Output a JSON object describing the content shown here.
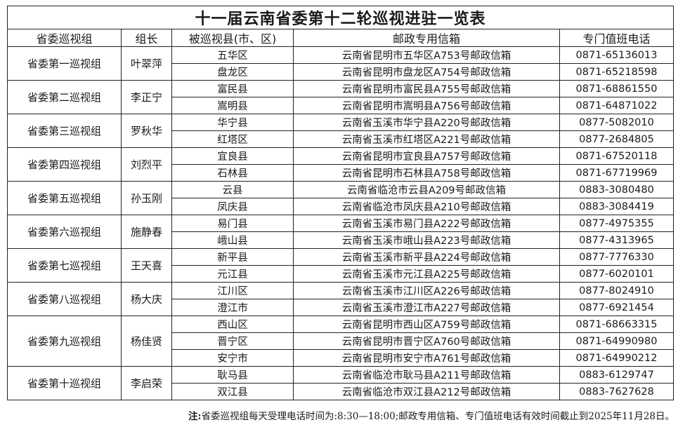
{
  "title": "十一届云南省委第十二轮巡视进驻一览表",
  "headers": [
    "省委巡视组",
    "组长",
    "被巡视县(市、区)",
    "邮政专用信箱",
    "专门值班电话"
  ],
  "groups": [
    {
      "name": "省委第一巡视组",
      "leader": "叶翠萍",
      "rows": [
        {
          "county": "五华区",
          "mailbox": "云南省昆明市五华区A753号邮政信箱",
          "phone": "0871-65136013"
        },
        {
          "county": "盘龙区",
          "mailbox": "云南省昆明市盘龙区A754号邮政信箱",
          "phone": "0871-65218598"
        }
      ]
    },
    {
      "name": "省委第二巡视组",
      "leader": "李正宁",
      "rows": [
        {
          "county": "富民县",
          "mailbox": "云南省昆明市富民县A755号邮政信箱",
          "phone": "0871-68861550"
        },
        {
          "county": "嵩明县",
          "mailbox": "云南省昆明市嵩明县A756号邮政信箱",
          "phone": "0871-64871022"
        }
      ]
    },
    {
      "name": "省委第三巡视组",
      "leader": "罗秋华",
      "rows": [
        {
          "county": "华宁县",
          "mailbox": "云南省玉溪市华宁县A220号邮政信箱",
          "phone": "0877-5082010"
        },
        {
          "county": "红塔区",
          "mailbox": "云南省玉溪市红塔区A221号邮政信箱",
          "phone": "0877-2684805"
        }
      ]
    },
    {
      "name": "省委第四巡视组",
      "leader": "刘烈平",
      "rows": [
        {
          "county": "宜良县",
          "mailbox": "云南省昆明市宜良县A757号邮政信箱",
          "phone": "0871-67520118"
        },
        {
          "county": "石林县",
          "mailbox": "云南省昆明市石林县A758号邮政信箱",
          "phone": "0871-67719969"
        }
      ]
    },
    {
      "name": "省委第五巡视组",
      "leader": "孙玉刚",
      "rows": [
        {
          "county": "云县",
          "mailbox": "云南省临沧市云县A209号邮政信箱",
          "phone": "0883-3080480"
        },
        {
          "county": "凤庆县",
          "mailbox": "云南省临沧市凤庆县A210号邮政信箱",
          "phone": "0883-3084419"
        }
      ]
    },
    {
      "name": "省委第六巡视组",
      "leader": "施静春",
      "rows": [
        {
          "county": "易门县",
          "mailbox": "云南省玉溪市易门县A222号邮政信箱",
          "phone": "0877-4975355"
        },
        {
          "county": "峨山县",
          "mailbox": "云南省玉溪市峨山县A223号邮政信箱",
          "phone": "0877-4313965"
        }
      ]
    },
    {
      "name": "省委第七巡视组",
      "leader": "王天喜",
      "rows": [
        {
          "county": "新平县",
          "mailbox": "云南省玉溪市新平县A224号邮政信箱",
          "phone": "0877-7776330"
        },
        {
          "county": "元江县",
          "mailbox": "云南省玉溪市元江县A225号邮政信箱",
          "phone": "0877-6020101"
        }
      ]
    },
    {
      "name": "省委第八巡视组",
      "leader": "杨大庆",
      "rows": [
        {
          "county": "江川区",
          "mailbox": "云南省玉溪市江川区A226号邮政信箱",
          "phone": "0877-8024910"
        },
        {
          "county": "澄江市",
          "mailbox": "云南省玉溪市澄江市A227号邮政信箱",
          "phone": "0877-6921454"
        }
      ]
    },
    {
      "name": "省委第九巡视组",
      "leader": "杨佳贤",
      "rows": [
        {
          "county": "西山区",
          "mailbox": "云南省昆明市西山区A759号邮政信箱",
          "phone": "0871-68663315"
        },
        {
          "county": "晋宁区",
          "mailbox": "云南省昆明市晋宁区A760号邮政信箱",
          "phone": "0871-64990980"
        },
        {
          "county": "安宁市",
          "mailbox": "云南省昆明市安宁市A761号邮政信箱",
          "phone": "0871-64990212"
        }
      ]
    },
    {
      "name": "省委第十巡视组",
      "leader": "李启荣",
      "rows": [
        {
          "county": "耿马县",
          "mailbox": "云南省临沧市耿马县A211号邮政信箱",
          "phone": "0883-6129747"
        },
        {
          "county": "双江县",
          "mailbox": "云南省临沧市双江县A212号邮政信箱",
          "phone": "0883-7627628"
        }
      ]
    }
  ],
  "note": {
    "label": "注:",
    "text": "省委巡视组每天受理电话时间为:8:30—18:00;邮政专用信箱、专门值班电话有效时间截止到2025年11月28日。"
  }
}
